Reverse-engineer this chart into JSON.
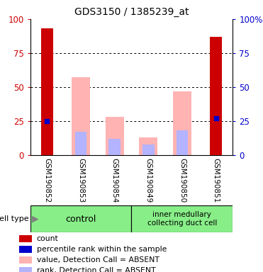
{
  "title": "GDS3150 / 1385239_at",
  "samples": [
    "GSM190852",
    "GSM190853",
    "GSM190854",
    "GSM190849",
    "GSM190850",
    "GSM190851"
  ],
  "red_bars": [
    93,
    0,
    0,
    0,
    0,
    87
  ],
  "pink_bars": [
    0,
    57,
    28,
    13,
    47,
    0
  ],
  "rank_bars": [
    0,
    17,
    12,
    8,
    18,
    0
  ],
  "blue_markers": [
    25,
    0,
    0,
    0,
    0,
    27
  ],
  "ylim": [
    0,
    100
  ],
  "left_ticks": [
    0,
    25,
    50,
    75,
    100
  ],
  "right_ticks": [
    0,
    25,
    50,
    75,
    100
  ],
  "right_tick_labels": [
    "0",
    "25",
    "50",
    "75",
    "100%"
  ],
  "red_color": "#cc0000",
  "pink_color": "#ffb3b3",
  "rank_color": "#b3b3ff",
  "blue_color": "#0000cc",
  "bg_color": "#cccccc",
  "control_color": "#88ee88",
  "imcd_color": "#88ee88",
  "legend_labels": [
    "count",
    "percentile rank within the sample",
    "value, Detection Call = ABSENT",
    "rank, Detection Call = ABSENT"
  ],
  "legend_colors": [
    "#cc0000",
    "#0000cc",
    "#ffb3b3",
    "#b3b3ff"
  ]
}
